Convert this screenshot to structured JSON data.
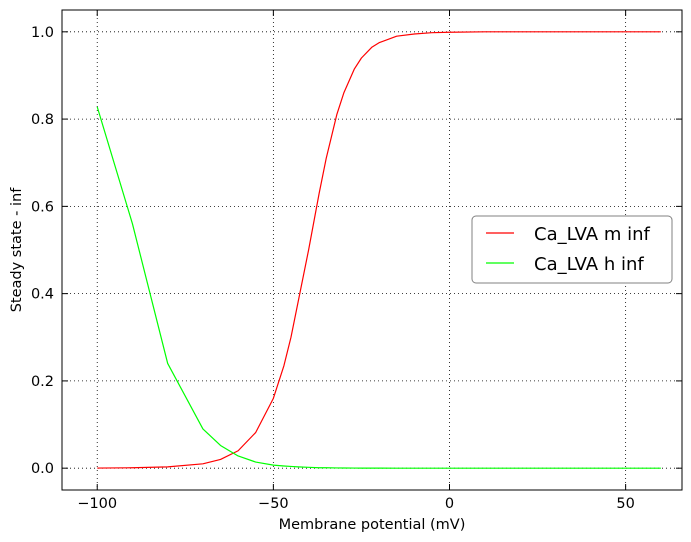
{
  "chart_data": {
    "type": "line",
    "title": "",
    "xlabel": "Membrane potential (mV)",
    "ylabel": "Steady state - inf",
    "xlim": [
      -110,
      66
    ],
    "ylim": [
      -0.05,
      1.05
    ],
    "xticks": [
      -100,
      -50,
      0,
      50
    ],
    "xtick_labels": [
      "−100",
      "−50",
      "0",
      "50"
    ],
    "yticks": [
      0.0,
      0.2,
      0.4,
      0.6,
      0.8,
      1.0
    ],
    "ytick_labels": [
      "0.0",
      "0.2",
      "0.4",
      "0.6",
      "0.8",
      "1.0"
    ],
    "grid": true,
    "legend_position": "center-right",
    "x": [
      -100,
      -90,
      -80,
      -70,
      -65,
      -60,
      -55,
      -50,
      -47,
      -45,
      -43,
      -40,
      -37,
      -35,
      -32,
      -30,
      -27,
      -25,
      -22,
      -20,
      -15,
      -10,
      -5,
      0,
      10,
      20,
      30,
      40,
      50,
      60
    ],
    "series": [
      {
        "name": "Ca_LVA m inf",
        "color": "#ff0000",
        "values": [
          0.0003,
          0.001,
          0.003,
          0.01,
          0.02,
          0.04,
          0.082,
          0.16,
          0.235,
          0.3,
          0.38,
          0.5,
          0.63,
          0.71,
          0.81,
          0.86,
          0.915,
          0.94,
          0.965,
          0.975,
          0.99,
          0.995,
          0.998,
          0.999,
          1.0,
          1.0,
          1.0,
          1.0,
          1.0,
          1.0
        ]
      },
      {
        "name": "Ca_LVA h inf",
        "color": "#00ff00",
        "values": [
          0.828,
          0.56,
          0.24,
          0.09,
          0.052,
          0.028,
          0.014,
          0.007,
          0.005,
          0.004,
          0.003,
          0.002,
          0.001,
          0.001,
          0.0005,
          0.0004,
          0.0003,
          0.0002,
          0.0001,
          0.0001,
          0,
          0,
          0,
          0,
          0,
          0,
          0,
          0,
          0,
          0
        ]
      }
    ]
  }
}
